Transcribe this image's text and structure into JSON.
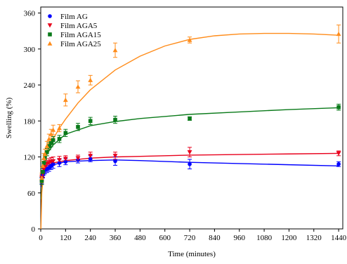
{
  "chart_data": {
    "type": "scatter",
    "title": "",
    "xlabel": "Time (minutes)",
    "ylabel": "Swelling (%)",
    "xlim": [
      0,
      1460
    ],
    "ylim": [
      0,
      370
    ],
    "x_ticks": [
      0,
      120,
      240,
      360,
      480,
      600,
      720,
      840,
      960,
      1080,
      1200,
      1320,
      1440
    ],
    "y_ticks": [
      0,
      60,
      120,
      180,
      240,
      300,
      360
    ],
    "grid": false,
    "legend_position": "top-left",
    "series": [
      {
        "name": "Film AG",
        "color": "#0000ff",
        "marker": "circle",
        "x": [
          5,
          10,
          15,
          20,
          30,
          40,
          50,
          60,
          90,
          120,
          180,
          240,
          360,
          720,
          1440
        ],
        "y": [
          80,
          90,
          95,
          98,
          100,
          102,
          105,
          108,
          110,
          112,
          115,
          117,
          113,
          108,
          108
        ],
        "err": [
          5,
          5,
          5,
          6,
          6,
          6,
          6,
          7,
          6,
          5,
          5,
          5,
          7,
          8,
          4
        ],
        "fit": [
          [
            2,
            70
          ],
          [
            20,
            95
          ],
          [
            60,
            107
          ],
          [
            120,
            112
          ],
          [
            240,
            114
          ],
          [
            360,
            115
          ],
          [
            480,
            114
          ],
          [
            720,
            111
          ],
          [
            960,
            109
          ],
          [
            1200,
            107
          ],
          [
            1440,
            105
          ]
        ]
      },
      {
        "name": "Film AGA5",
        "color": "#e8001c",
        "marker": "triangle-down",
        "x": [
          5,
          10,
          15,
          20,
          30,
          40,
          50,
          60,
          90,
          120,
          180,
          240,
          360,
          720,
          1440
        ],
        "y": [
          85,
          92,
          100,
          103,
          108,
          110,
          112,
          113,
          115,
          117,
          118,
          122,
          122,
          128,
          126
        ],
        "err": [
          5,
          6,
          6,
          6,
          6,
          7,
          7,
          7,
          6,
          5,
          5,
          6,
          6,
          8,
          4
        ],
        "fit": [
          [
            2,
            72
          ],
          [
            20,
            100
          ],
          [
            60,
            110
          ],
          [
            120,
            114
          ],
          [
            240,
            118
          ],
          [
            360,
            120
          ],
          [
            480,
            121
          ],
          [
            720,
            123
          ],
          [
            960,
            124
          ],
          [
            1200,
            125
          ],
          [
            1440,
            126
          ]
        ]
      },
      {
        "name": "Film AGA15",
        "color": "#0a7a1a",
        "marker": "square",
        "x": [
          5,
          10,
          15,
          20,
          30,
          40,
          50,
          60,
          90,
          120,
          180,
          240,
          360,
          720,
          1440
        ],
        "y": [
          80,
          95,
          110,
          118,
          128,
          138,
          143,
          148,
          150,
          160,
          170,
          180,
          182,
          184,
          203
        ],
        "err": [
          6,
          6,
          6,
          6,
          6,
          6,
          6,
          6,
          6,
          6,
          6,
          6,
          6,
          3,
          5
        ],
        "fit": [
          [
            2,
            50
          ],
          [
            10,
            95
          ],
          [
            30,
            125
          ],
          [
            60,
            140
          ],
          [
            120,
            158
          ],
          [
            240,
            172
          ],
          [
            360,
            179
          ],
          [
            480,
            184
          ],
          [
            720,
            191
          ],
          [
            960,
            195
          ],
          [
            1200,
            199
          ],
          [
            1440,
            202
          ]
        ]
      },
      {
        "name": "Film AGA25",
        "color": "#ff8c1a",
        "marker": "triangle-up",
        "x": [
          5,
          10,
          15,
          20,
          30,
          40,
          50,
          60,
          90,
          120,
          180,
          240,
          360,
          720,
          1440
        ],
        "y": [
          85,
          105,
          118,
          125,
          138,
          150,
          158,
          165,
          168,
          215,
          237,
          248,
          298,
          315,
          325
        ],
        "err": [
          8,
          8,
          8,
          8,
          8,
          8,
          8,
          8,
          6,
          10,
          10,
          8,
          12,
          5,
          15
        ],
        "fit": [
          [
            1,
            0
          ],
          [
            5,
            60
          ],
          [
            15,
            100
          ],
          [
            30,
            125
          ],
          [
            60,
            150
          ],
          [
            90,
            168
          ],
          [
            120,
            183
          ],
          [
            180,
            210
          ],
          [
            240,
            232
          ],
          [
            360,
            265
          ],
          [
            480,
            288
          ],
          [
            600,
            305
          ],
          [
            720,
            316
          ],
          [
            840,
            322
          ],
          [
            960,
            325
          ],
          [
            1080,
            326
          ],
          [
            1200,
            326
          ],
          [
            1320,
            325
          ],
          [
            1440,
            323
          ]
        ]
      }
    ]
  }
}
